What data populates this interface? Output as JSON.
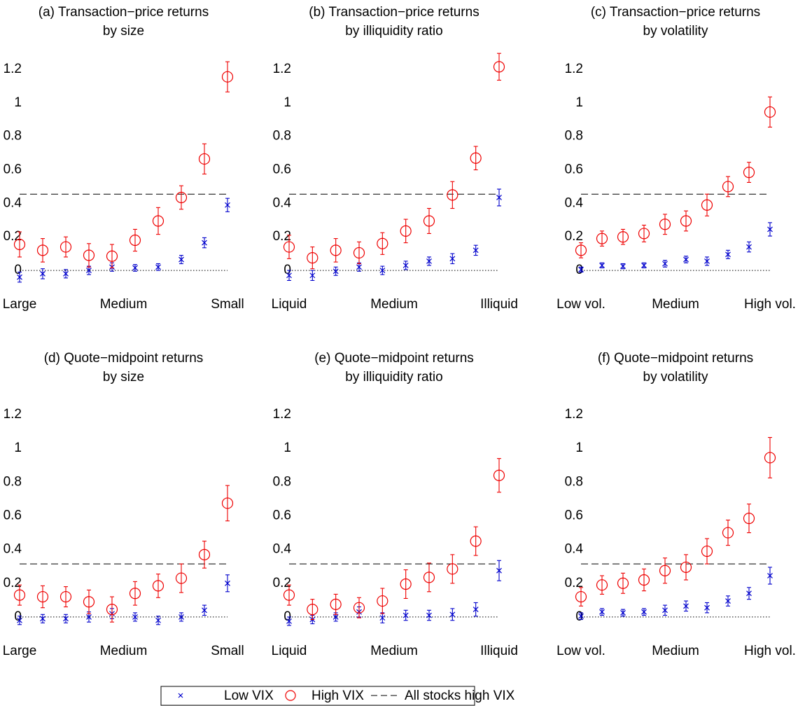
{
  "chart_data": [
    {
      "type": "errorbar",
      "title": [
        "(a) Transaction−price returns",
        "by size"
      ],
      "x": [
        1,
        2,
        3,
        4,
        5,
        6,
        7,
        8,
        9,
        10
      ],
      "xlim": [
        1,
        10
      ],
      "xticks": [
        {
          "value": 1,
          "label": "Large"
        },
        {
          "value": 5.5,
          "label": "Medium"
        },
        {
          "value": 10,
          "label": "Small"
        }
      ],
      "ylim": [
        -0.1,
        1.3
      ],
      "yticks": [
        0,
        0.2,
        0.4,
        0.6,
        0.8,
        1,
        1.2
      ],
      "series": [
        {
          "color": "#0000cc",
          "marker": "x",
          "values": [
            -0.04,
            -0.02,
            -0.02,
            0,
            0.02,
            0.015,
            0.02,
            0.065,
            0.165,
            0.39
          ],
          "errors": [
            0.03,
            0.03,
            0.025,
            0.025,
            0.025,
            0.02,
            0.02,
            0.025,
            0.03,
            0.04
          ]
        },
        {
          "color": "#ee0000",
          "marker": "o",
          "values": [
            0.155,
            0.12,
            0.14,
            0.09,
            0.085,
            0.18,
            0.295,
            0.435,
            0.665,
            1.155
          ],
          "errors": [
            0.075,
            0.07,
            0.06,
            0.07,
            0.07,
            0.065,
            0.08,
            0.07,
            0.09,
            0.09
          ]
        }
      ],
      "reference": 0.455
    },
    {
      "type": "errorbar",
      "title": [
        "(b) Transaction−price returns",
        "by illiquidity ratio"
      ],
      "x": [
        1,
        2,
        3,
        4,
        5,
        6,
        7,
        8,
        9,
        10
      ],
      "xlim": [
        1,
        10
      ],
      "xticks": [
        {
          "value": 1,
          "label": "Liquid"
        },
        {
          "value": 5.5,
          "label": "Medium"
        },
        {
          "value": 10,
          "label": "Illiquid"
        }
      ],
      "ylim": [
        -0.1,
        1.3
      ],
      "yticks": [
        0,
        0.2,
        0.4,
        0.6,
        0.8,
        1,
        1.2
      ],
      "series": [
        {
          "color": "#0000cc",
          "marker": "x",
          "values": [
            -0.03,
            -0.03,
            -0.005,
            0.02,
            0,
            0.03,
            0.055,
            0.07,
            0.12,
            0.435
          ],
          "errors": [
            0.03,
            0.03,
            0.025,
            0.025,
            0.025,
            0.025,
            0.025,
            0.03,
            0.03,
            0.05
          ]
        },
        {
          "color": "#ee0000",
          "marker": "o",
          "values": [
            0.14,
            0.075,
            0.12,
            0.105,
            0.16,
            0.235,
            0.295,
            0.45,
            0.67,
            1.215
          ],
          "errors": [
            0.07,
            0.065,
            0.07,
            0.065,
            0.065,
            0.07,
            0.075,
            0.08,
            0.07,
            0.08
          ]
        }
      ],
      "reference": 0.455
    },
    {
      "type": "errorbar",
      "title": [
        "(c) Transaction−price returns",
        "by volatility"
      ],
      "x": [
        1,
        2,
        3,
        4,
        5,
        6,
        7,
        8,
        9,
        10
      ],
      "xlim": [
        1,
        10
      ],
      "xticks": [
        {
          "value": 1,
          "label": "Low vol."
        },
        {
          "value": 5.5,
          "label": "Medium"
        },
        {
          "value": 10,
          "label": "High vol."
        }
      ],
      "ylim": [
        -0.1,
        1.3
      ],
      "yticks": [
        0,
        0.2,
        0.4,
        0.6,
        0.8,
        1,
        1.2
      ],
      "series": [
        {
          "color": "#0000cc",
          "marker": "x",
          "values": [
            0.005,
            0.03,
            0.025,
            0.03,
            0.04,
            0.065,
            0.055,
            0.095,
            0.14,
            0.245
          ],
          "errors": [
            0.015,
            0.015,
            0.015,
            0.015,
            0.02,
            0.02,
            0.025,
            0.025,
            0.03,
            0.04
          ]
        },
        {
          "color": "#ee0000",
          "marker": "o",
          "values": [
            0.12,
            0.19,
            0.2,
            0.22,
            0.275,
            0.295,
            0.39,
            0.5,
            0.585,
            0.945
          ],
          "errors": [
            0.045,
            0.045,
            0.045,
            0.05,
            0.06,
            0.06,
            0.065,
            0.06,
            0.06,
            0.09
          ]
        }
      ],
      "reference": 0.455
    },
    {
      "type": "errorbar",
      "title": [
        "(d) Quote−midpoint returns",
        "by size"
      ],
      "x": [
        1,
        2,
        3,
        4,
        5,
        6,
        7,
        8,
        9,
        10
      ],
      "xlim": [
        1,
        10
      ],
      "xticks": [
        {
          "value": 1,
          "label": "Large"
        },
        {
          "value": 5.5,
          "label": "Medium"
        },
        {
          "value": 10,
          "label": "Small"
        }
      ],
      "ylim": [
        -0.1,
        1.3
      ],
      "yticks": [
        0,
        0.2,
        0.4,
        0.6,
        0.8,
        1,
        1.2
      ],
      "series": [
        {
          "color": "#0000cc",
          "marker": "x",
          "values": [
            -0.02,
            -0.01,
            -0.01,
            0,
            0.02,
            0,
            -0.02,
            0,
            0.04,
            0.2
          ],
          "errors": [
            0.025,
            0.025,
            0.025,
            0.03,
            0.03,
            0.025,
            0.025,
            0.025,
            0.03,
            0.05
          ]
        },
        {
          "color": "#ee0000",
          "marker": "o",
          "values": [
            0.13,
            0.12,
            0.12,
            0.09,
            0.045,
            0.14,
            0.185,
            0.23,
            0.37,
            0.675
          ],
          "errors": [
            0.06,
            0.065,
            0.06,
            0.07,
            0.075,
            0.07,
            0.07,
            0.085,
            0.08,
            0.105
          ]
        }
      ],
      "reference": 0.315
    },
    {
      "type": "errorbar",
      "title": [
        "(e) Quote−midpoint returns",
        "by illiquidity ratio"
      ],
      "x": [
        1,
        2,
        3,
        4,
        5,
        6,
        7,
        8,
        9,
        10
      ],
      "xlim": [
        1,
        10
      ],
      "xticks": [
        {
          "value": 1,
          "label": "Liquid"
        },
        {
          "value": 5.5,
          "label": "Medium"
        },
        {
          "value": 10,
          "label": "Illiquid"
        }
      ],
      "ylim": [
        -0.1,
        1.3
      ],
      "yticks": [
        0,
        0.2,
        0.4,
        0.6,
        0.8,
        1,
        1.2
      ],
      "series": [
        {
          "color": "#0000cc",
          "marker": "x",
          "values": [
            -0.025,
            -0.015,
            0,
            0.03,
            -0.005,
            0.01,
            0.01,
            0.015,
            0.045,
            0.275
          ],
          "errors": [
            0.025,
            0.025,
            0.025,
            0.03,
            0.03,
            0.03,
            0.03,
            0.035,
            0.04,
            0.06
          ]
        },
        {
          "color": "#ee0000",
          "marker": "o",
          "values": [
            0.13,
            0.045,
            0.075,
            0.055,
            0.095,
            0.195,
            0.235,
            0.285,
            0.45,
            0.84
          ],
          "errors": [
            0.06,
            0.06,
            0.06,
            0.06,
            0.075,
            0.085,
            0.085,
            0.085,
            0.085,
            0.1
          ]
        }
      ],
      "reference": 0.315
    },
    {
      "type": "errorbar",
      "title": [
        "(f) Quote−midpoint returns",
        "by volatility"
      ],
      "x": [
        1,
        2,
        3,
        4,
        5,
        6,
        7,
        8,
        9,
        10
      ],
      "xlim": [
        1,
        10
      ],
      "xticks": [
        {
          "value": 1,
          "label": "Low vol."
        },
        {
          "value": 5.5,
          "label": "Medium"
        },
        {
          "value": 10,
          "label": "High vol."
        }
      ],
      "ylim": [
        -0.1,
        1.3
      ],
      "yticks": [
        0,
        0.2,
        0.4,
        0.6,
        0.8,
        1,
        1.2
      ],
      "series": [
        {
          "color": "#0000cc",
          "marker": "x",
          "values": [
            0.005,
            0.03,
            0.025,
            0.03,
            0.04,
            0.065,
            0.055,
            0.095,
            0.14,
            0.245
          ],
          "errors": [
            0.02,
            0.02,
            0.02,
            0.02,
            0.03,
            0.03,
            0.03,
            0.03,
            0.035,
            0.05
          ]
        },
        {
          "color": "#ee0000",
          "marker": "o",
          "values": [
            0.12,
            0.19,
            0.2,
            0.22,
            0.275,
            0.295,
            0.39,
            0.5,
            0.585,
            0.945
          ],
          "errors": [
            0.055,
            0.055,
            0.06,
            0.065,
            0.075,
            0.075,
            0.075,
            0.075,
            0.085,
            0.12
          ]
        }
      ],
      "reference": 0.315
    }
  ],
  "legend": [
    "Low VIX",
    "High VIX",
    "All stocks high VIX"
  ]
}
